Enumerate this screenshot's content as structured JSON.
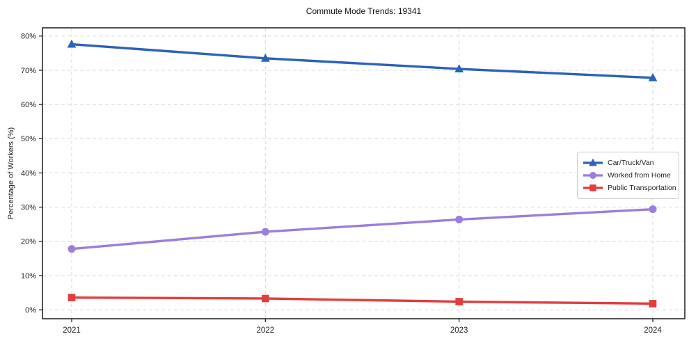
{
  "title": "Commute Mode Trends: 19341",
  "chart_data": {
    "type": "line",
    "title": "Commute Mode Trends: 19341",
    "xlabel": "",
    "ylabel": "Percentage of Workers (%)",
    "categories": [
      "2021",
      "2022",
      "2023",
      "2024"
    ],
    "series": [
      {
        "name": "Car/Truck/Van",
        "marker": "triangle-up",
        "color": "#2b62ba",
        "values": [
          77.6,
          73.5,
          70.4,
          67.8
        ]
      },
      {
        "name": "Worked from Home",
        "marker": "circle",
        "color": "#9b7edc",
        "values": [
          17.8,
          22.8,
          26.4,
          29.4
        ]
      },
      {
        "name": "Public Transportation",
        "marker": "square",
        "color": "#e23d3d",
        "values": [
          3.6,
          3.3,
          2.4,
          1.8
        ]
      }
    ],
    "ytick_labels": [
      "0%",
      "10%",
      "20%",
      "30%",
      "40%",
      "50%",
      "60%",
      "70%",
      "80%"
    ],
    "ytick_values": [
      0,
      10,
      20,
      30,
      40,
      50,
      60,
      70,
      80
    ],
    "ylim": [
      -2.6,
      82.4
    ],
    "grid": true,
    "grid_style": "dashed",
    "legend_position": "right"
  }
}
